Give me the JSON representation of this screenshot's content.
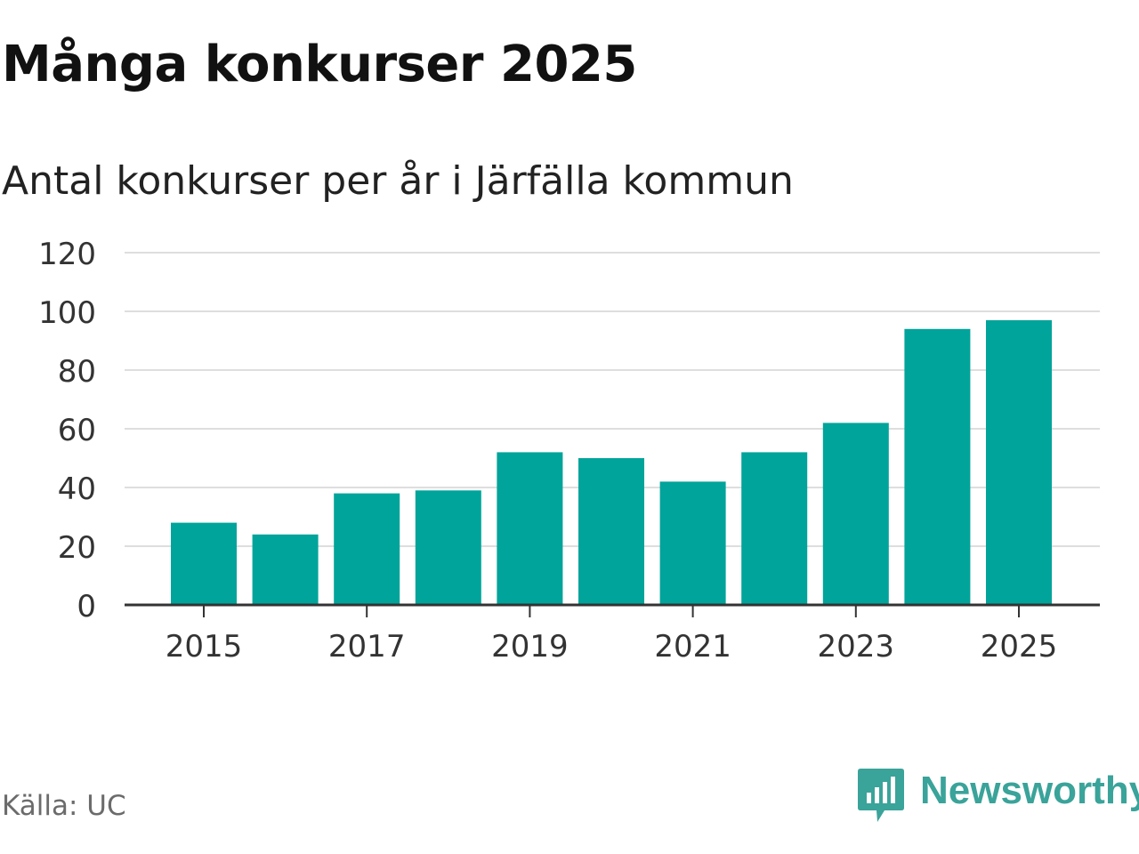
{
  "header": {
    "title": "Många konkurser 2025",
    "subtitle": "Antal konkurser per år i Järfälla kommun"
  },
  "footer": {
    "source": "Källa: UC",
    "brand": "Newsworthy"
  },
  "colors": {
    "bar": "#00a49a",
    "grid": "#dedede",
    "axis": "#333333",
    "brand": "#3aa39a"
  },
  "icons": {
    "brand_logo": "newsworthy-logo-icon"
  },
  "chart_data": {
    "type": "bar",
    "title": "Många konkurser 2025",
    "subtitle": "Antal konkurser per år i Järfälla kommun",
    "xlabel": "",
    "ylabel": "",
    "categories": [
      "2015",
      "2016",
      "2017",
      "2018",
      "2019",
      "2020",
      "2021",
      "2022",
      "2023",
      "2024",
      "2025"
    ],
    "values": [
      28,
      24,
      38,
      39,
      52,
      50,
      42,
      52,
      62,
      94,
      97
    ],
    "ylim": [
      0,
      120
    ],
    "yticks": [
      0,
      20,
      40,
      60,
      80,
      100,
      120
    ],
    "xtick_labels": [
      "2015",
      "2017",
      "2019",
      "2021",
      "2023",
      "2025"
    ],
    "grid": true,
    "legend": "none"
  }
}
